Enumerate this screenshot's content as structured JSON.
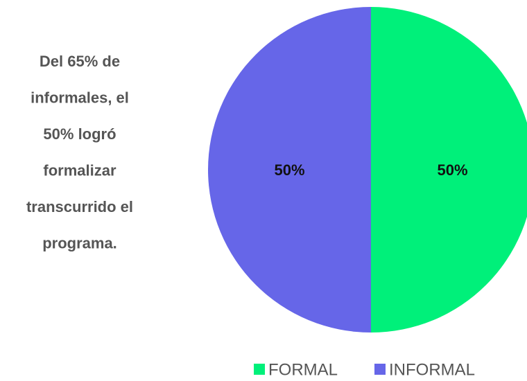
{
  "chart_data": {
    "type": "pie",
    "annotation": [
      "Del 65% de",
      "informales, el",
      "50% logró",
      "formalizar",
      "transcurrido el",
      "programa."
    ],
    "categories": [
      "FORMAL",
      "INFORMAL"
    ],
    "values": [
      50,
      50
    ],
    "value_labels": [
      "50%",
      "50%"
    ],
    "colors": [
      "#00f07a",
      "#6666e8"
    ],
    "legend": "bottom"
  }
}
